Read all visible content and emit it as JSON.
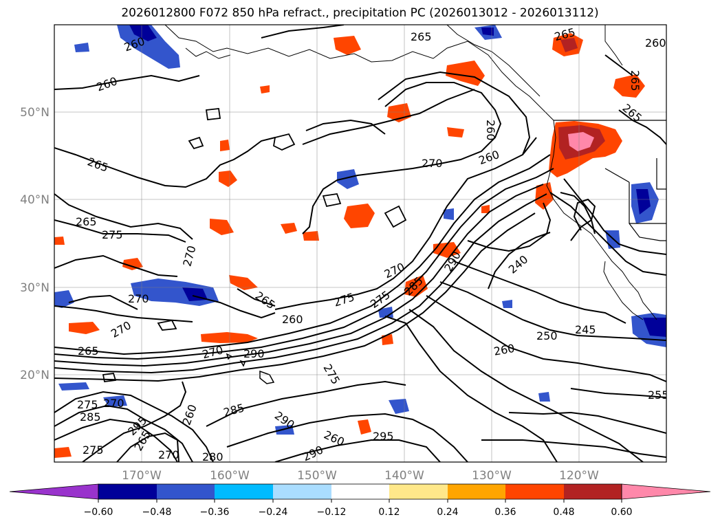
{
  "title": "2026012800 F072 850 hPa refract., precipitation PC (2026013012 - 2026013112)",
  "lat_labels": [
    "50°N",
    "40°N",
    "30°N",
    "20°N"
  ],
  "lon_labels": [
    "170°W",
    "160°W",
    "150°W",
    "140°W",
    "130°W",
    "120°W"
  ],
  "colorbar": {
    "colors": [
      "#9933cc",
      "#000099",
      "#3355cc",
      "#00bbff",
      "#aaddff",
      "#ffffff",
      "#ffe88a",
      "#ffa500",
      "#ff4500",
      "#b22222",
      "#ff88aa"
    ],
    "tick_labels": [
      "−0.60",
      "−0.48",
      "−0.36",
      "−0.24",
      "−0.12",
      "0.12",
      "0.24",
      "0.36",
      "0.48",
      "0.60"
    ]
  },
  "contour_labels": [
    "260",
    "265",
    "265",
    "260",
    "260",
    "265",
    "265",
    "275",
    "270",
    "270",
    "270",
    "270",
    "265",
    "265",
    "260",
    "275",
    "270",
    "275",
    "285",
    "290",
    "290",
    "275",
    "275",
    "270",
    "285",
    "275",
    "295",
    "265",
    "260",
    "270",
    "280",
    "290",
    "290",
    "285",
    "295",
    "260",
    "270",
    "260",
    "240",
    "250",
    "245",
    "260",
    "265",
    "260",
    "265",
    "255"
  ]
}
